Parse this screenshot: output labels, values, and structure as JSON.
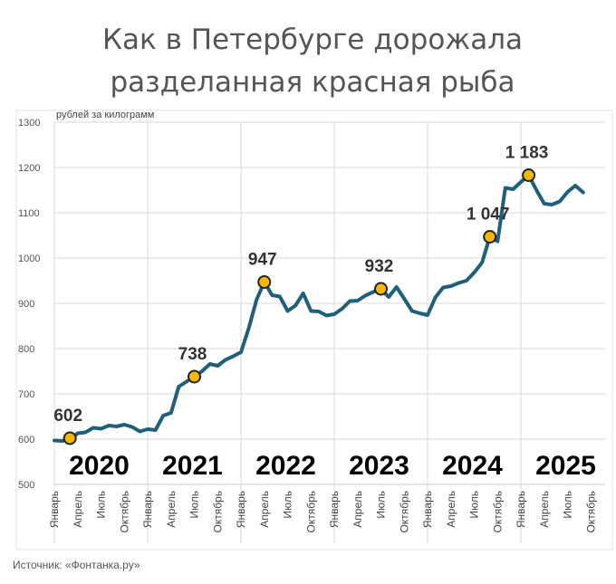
{
  "title_line1": "Как в Петербурге дорожала",
  "title_line2": "разделанная красная рыба",
  "source": "Источник: «Фонтанка.ру»",
  "chart_data": {
    "type": "line",
    "title": "Как в Петербурге дорожала разделанная красная рыба",
    "ylabel": "рублей за килограмм",
    "ylim": [
      500,
      1300
    ],
    "yticks": [
      500,
      600,
      700,
      800,
      900,
      1000,
      1100,
      1200,
      1300
    ],
    "grid": true,
    "month_labels": [
      "Январь",
      "Апрель",
      "Июль",
      "Октябрь"
    ],
    "years": [
      "2020",
      "2021",
      "2022",
      "2023",
      "2024",
      "2025"
    ],
    "series": [
      {
        "color": "#1f5f7a",
        "values": [
          597,
          596,
          600,
          613,
          615,
          625,
          623,
          630,
          628,
          632,
          627,
          617,
          622,
          620,
          652,
          658,
          716,
          727,
          738,
          750,
          766,
          762,
          775,
          783,
          792,
          845,
          908,
          947,
          918,
          915,
          883,
          895,
          922,
          883,
          882,
          873,
          876,
          888,
          905,
          906,
          917,
          925,
          932,
          914,
          936,
          910,
          883,
          878,
          874,
          913,
          935,
          938,
          945,
          950,
          968,
          990,
          1047,
          1037,
          1155,
          1152,
          1168,
          1183,
          1150,
          1120,
          1118,
          1125,
          1146,
          1160,
          1145
        ]
      }
    ],
    "markers": [
      {
        "label": "602",
        "value": 602
      },
      {
        "label": "738",
        "value": 738
      },
      {
        "label": "947",
        "value": 947
      },
      {
        "label": "932",
        "value": 932
      },
      {
        "label": "1 047",
        "value": 1047
      },
      {
        "label": "1 183",
        "value": 1183
      }
    ],
    "marker_color": "#f5b800"
  }
}
